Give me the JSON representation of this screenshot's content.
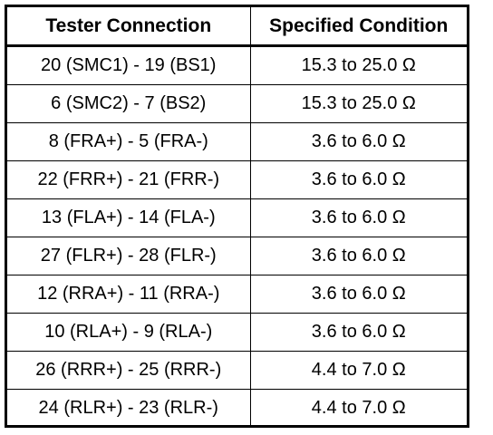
{
  "table": {
    "headers": [
      "Tester Connection",
      "Specified Condition"
    ],
    "rows": [
      [
        "20 (SMC1) - 19 (BS1)",
        "15.3 to 25.0 Ω"
      ],
      [
        "6 (SMC2) - 7 (BS2)",
        "15.3 to 25.0 Ω"
      ],
      [
        "8 (FRA+) - 5 (FRA-)",
        "3.6 to 6.0 Ω"
      ],
      [
        "22 (FRR+) - 21 (FRR-)",
        "3.6 to 6.0 Ω"
      ],
      [
        "13 (FLA+) - 14 (FLA-)",
        "3.6 to 6.0 Ω"
      ],
      [
        "27 (FLR+) - 28 (FLR-)",
        "3.6 to 6.0 Ω"
      ],
      [
        "12 (RRA+) - 11 (RRA-)",
        "3.6 to 6.0 Ω"
      ],
      [
        "10 (RLA+) - 9 (RLA-)",
        "3.6 to 6.0 Ω"
      ],
      [
        "26 (RRR+) - 25 (RRR-)",
        "4.4 to 7.0 Ω"
      ],
      [
        "24 (RLR+) - 23 (RLR-)",
        "4.4 to 7.0 Ω"
      ]
    ]
  }
}
